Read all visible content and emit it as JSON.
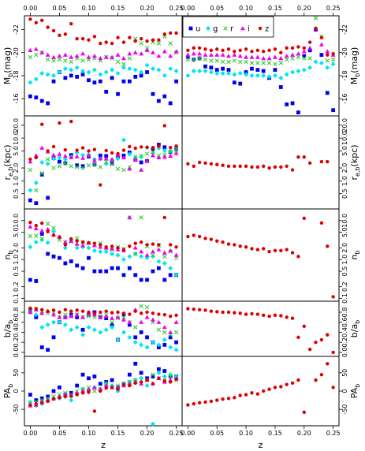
{
  "chart_data": {
    "type": "scatter",
    "layout": "5 rows x 2 columns, shared x axis",
    "xlabel": "z",
    "xlim": [
      -0.01,
      0.26
    ],
    "x_ticks": [
      "0.00",
      "0.05",
      "0.10",
      "0.15",
      "0.20",
      "0.25"
    ],
    "x": [
      0.0,
      0.01,
      0.02,
      0.03,
      0.04,
      0.05,
      0.06,
      0.07,
      0.08,
      0.09,
      0.1,
      0.11,
      0.12,
      0.13,
      0.14,
      0.15,
      0.16,
      0.17,
      0.18,
      0.19,
      0.2,
      0.21,
      0.22,
      0.23,
      0.24,
      0.25
    ],
    "legend": {
      "placement": "top-left of right column",
      "entries": [
        {
          "label": "u",
          "color": "#0000ee",
          "marker": "square"
        },
        {
          "label": "g",
          "color": "#00e5ee",
          "marker": "diamond"
        },
        {
          "label": "r",
          "color": "#33cc33",
          "marker": "cross"
        },
        {
          "label": "i",
          "color": "#ee00ee",
          "marker": "triangle"
        },
        {
          "label": "z",
          "color": "#dd0000",
          "marker": "circle"
        }
      ]
    },
    "rows": [
      {
        "ylabel_main": "M",
        "ylabel_sub": "b",
        "ylabel_unit": "(mag)",
        "ylim": [
          -14.5,
          -23.2
        ],
        "reversed": true,
        "y_ticks": [
          "-16",
          "-18",
          "-20",
          "-22"
        ],
        "left": {
          "u": [
            -16.2,
            -16.1,
            -15.8,
            -15.6,
            -17.5,
            -18.3,
            -17.8,
            -18.0,
            -17.9,
            -18.1,
            -17.6,
            -17.4,
            -17.5,
            -16.6,
            -17.8,
            -16.4,
            -17.5,
            -17.5,
            -17.9,
            -18.0,
            -18.3,
            -16.4,
            -15.8,
            -16.2,
            -15.6,
            -17.5
          ],
          "g": [
            -17.4,
            -17.7,
            -18.2,
            -18.1,
            -18.0,
            -18.3,
            -18.6,
            -18.5,
            -18.7,
            -18.4,
            -18.3,
            -18.5,
            -18.1,
            -18.3,
            -18.5,
            -18.2,
            -18.7,
            -18.6,
            -18.5,
            -18.3,
            -18.9,
            -18.6,
            -18.5,
            -18.0,
            -18.6,
            -18.4
          ],
          "r": [
            -19.6,
            -19.8,
            -20.0,
            -19.4,
            -19.3,
            -19.4,
            -19.3,
            -19.2,
            -19.5,
            -19.3,
            -19.4,
            -19.5,
            -19.3,
            -19.6,
            -19.5,
            -19.2,
            -19.0,
            -19.5,
            -21.2,
            -20.8,
            -20.4,
            -20.9,
            -20.8,
            -21.4,
            -20.8,
            -20.0
          ],
          "i": [
            -20.2,
            -20.3,
            -20.0,
            -19.8,
            -19.6,
            -19.7,
            -19.8,
            -19.6,
            -19.7,
            -19.9,
            -19.6,
            -19.7,
            -19.5,
            -19.6,
            -19.6,
            -19.8,
            -19.5,
            -19.9,
            -20.0,
            -19.9,
            -20.2,
            -20.0,
            -19.7,
            -20.1,
            -19.7,
            -20.1
          ],
          "z": [
            -22.9,
            -22.6,
            -22.8,
            -22.2,
            -21.9,
            -21.5,
            -21.6,
            -22.5,
            -21.2,
            -21.2,
            -21.1,
            -21.4,
            -20.8,
            -20.9,
            -20.8,
            -21.3,
            -20.9,
            -21.3,
            -21.0,
            -21.2,
            -21.0,
            -21.1,
            -21.1,
            -21.6,
            -21.7,
            -21.7
          ]
        },
        "right": {
          "u": [
            -19.6,
            -19.4,
            -19.5,
            -18.8,
            -18.7,
            -18.5,
            -18.6,
            -18.5,
            -17.4,
            -17.3,
            -18.3,
            -18.6,
            -18.5,
            -18.4,
            -17.8,
            -18.5,
            -17.0,
            -15.5,
            -15.6,
            -14.8,
            -19.7,
            -20.2,
            -22.0,
            -19.8,
            -16.5,
            -15.0
          ],
          "g": [
            -18.0,
            -18.4,
            -18.4,
            -18.4,
            -18.3,
            -18.2,
            -18.2,
            -18.2,
            -18.1,
            -18.2,
            -18.1,
            -18.0,
            -18.0,
            -18.0,
            -17.9,
            -18.0,
            -17.8,
            -18.1,
            -18.3,
            -18.4,
            -18.5,
            -18.7,
            -19.2,
            -19.1,
            -18.7,
            -19.0
          ],
          "r": [
            -19.4,
            -19.4,
            -19.5,
            -19.4,
            -19.3,
            -19.3,
            -19.2,
            -19.2,
            -19.3,
            -19.2,
            -19.2,
            -19.1,
            -19.1,
            -19.1,
            -19.1,
            -19.0,
            -19.1,
            -19.4,
            -19.5,
            -19.6,
            -19.5,
            -19.5,
            -23.0,
            -21.4,
            -19.3,
            -19.4
          ],
          "i": [
            -19.8,
            -19.9,
            -19.9,
            -19.8,
            -19.8,
            -19.8,
            -19.8,
            -19.7,
            -19.8,
            -19.7,
            -19.6,
            -19.6,
            -19.6,
            -19.5,
            -19.5,
            -19.6,
            -19.5,
            -19.7,
            -19.8,
            -19.9,
            -20.1,
            -20.4,
            -22.1,
            -20.7,
            -20.1,
            -19.8
          ],
          "z": [
            -20.2,
            -20.4,
            -20.4,
            -20.3,
            -20.2,
            -20.3,
            -20.2,
            -20.3,
            -20.1,
            -20.2,
            -20.3,
            -20.1,
            -20.2,
            -20.1,
            -20.2,
            -20.3,
            -20.0,
            -20.4,
            -20.4,
            -20.5,
            -20.4,
            -20.9,
            -22.1,
            -21.3,
            -19.8,
            -19.9
          ]
        }
      },
      {
        "ylabel_main": "r",
        "ylabel_sub": "e,b",
        "ylabel_unit": "(kpc)",
        "ylim": [
          0.22,
          33
        ],
        "log": true,
        "y_ticks": [
          "0.5",
          "1.0",
          "2.0",
          "5.0",
          "10.0",
          "20.0"
        ],
        "left": {
          "u": [
            0.35,
            0.3,
            1.4,
            0.4,
            3.4,
            2.8,
            2.6,
            4.0,
            2.3,
            2.2,
            3.7,
            2.4,
            3.9,
            3.8,
            2.6,
            3.6,
            3.9,
            4.6,
            3.1,
            2.7,
            2.9,
            5.4,
            7.0,
            6.1,
            4.7,
            5.6
          ],
          "g": [
            0.6,
            0.9,
            2.7,
            2.5,
            3.3,
            3.5,
            3.2,
            3.6,
            4.6,
            4.0,
            4.1,
            3.2,
            3.3,
            2.5,
            3.1,
            3.3,
            9.0,
            4.2,
            3.5,
            3.6,
            6.0,
            4.4,
            5.8,
            5.1,
            5.0,
            6.2
          ],
          "r": [
            1.8,
            0.6,
            1.5,
            3.2,
            2.0,
            2.2,
            2.6,
            2.2,
            2.1,
            2.0,
            2.3,
            2.4,
            2.1,
            2.8,
            2.4,
            1.9,
            1.8,
            2.1,
            3.6,
            3.9,
            4.3,
            4.8,
            3.9,
            4.1,
            4.8,
            5.1
          ],
          "i": [
            2.8,
            3.9,
            5.9,
            4.8,
            4.0,
            4.2,
            3.8,
            3.5,
            3.7,
            3.4,
            3.9,
            3.0,
            3.3,
            3.3,
            3.2,
            4.0,
            3.5,
            1.9,
            3.1,
            1.8,
            2.9,
            3.9,
            3.5,
            3.6,
            3.8,
            4.4
          ],
          "z": [
            3.2,
            3.5,
            21.0,
            5.0,
            6.3,
            22.5,
            5.3,
            24.5,
            5.2,
            5.9,
            5.0,
            5.4,
            0.8,
            5.1,
            4.5,
            4.3,
            5.2,
            6.3,
            5.8,
            6.2,
            6.1,
            6.0,
            6.5,
            19.5,
            6.0,
            6.5
          ]
        },
        "right": {
          "z": [
            2.5,
            2.2,
            2.7,
            2.6,
            2.5,
            2.4,
            2.3,
            2.2,
            2.2,
            2.2,
            2.2,
            2.1,
            2.1,
            2.2,
            2.0,
            2.1,
            2.1,
            2.2,
            1.8,
            3.6,
            3.6,
            2.6,
            null,
            2.8,
            2.8,
            null
          ]
        }
      },
      {
        "ylabel_main": "n",
        "ylabel_sub": "b",
        "ylabel_unit": "",
        "ylim": [
          0.085,
          20
        ],
        "log": true,
        "y_ticks": [
          "0.1",
          "0.2",
          "0.5",
          "1.0",
          "2.0",
          "5.0",
          "10.0"
        ],
        "left": {
          "u": [
            0.3,
            0.28,
            4.6,
            1.4,
            1.2,
            1.1,
            0.8,
            0.9,
            0.7,
            0.6,
            1.1,
            0.5,
            0.5,
            0.5,
            0.6,
            0.6,
            0.4,
            0.6,
            0.4,
            0.3,
            0.3,
            0.5,
            0.6,
            0.3,
            0.4,
            0.4
          ],
          "g": [
            2.1,
            2.8,
            3.2,
            2.7,
            5.3,
            3.6,
            2.0,
            3.0,
            2.0,
            2.1,
            2.0,
            1.7,
            1.6,
            1.6,
            1.4,
            1.3,
            1.0,
            1.2,
            1.4,
            1.2,
            1.1,
            1.2,
            0.9,
            0.8,
            0.6,
            0.4
          ],
          "r": [
            4.0,
            4.1,
            3.5,
            8.3,
            6.5,
            3.2,
            2.8,
            2.9,
            3.5,
            2.8,
            2.6,
            2.4,
            2.6,
            2.0,
            1.8,
            2.1,
            1.9,
            12.0,
            1.4,
            12.1,
            2.2,
            1.3,
            2.3,
            1.2,
            1.6,
            1.1
          ],
          "i": [
            7.0,
            6.3,
            5.5,
            6.0,
            4.4,
            3.8,
            2.8,
            3.0,
            2.5,
            2.3,
            2.7,
            2.3,
            2.1,
            2.0,
            1.9,
            1.8,
            1.7,
            12.0,
            2.0,
            1.6,
            1.3,
            1.6,
            1.8,
            1.5,
            1.7,
            1.3
          ],
          "z": [
            9.0,
            7.5,
            8.6,
            5.2,
            4.2,
            3.8,
            2.4,
            3.4,
            3.0,
            2.8,
            2.7,
            2.6,
            2.4,
            2.1,
            2.2,
            2.0,
            1.8,
            2.2,
            2.6,
            2.8,
            2.4,
            2.5,
            2.4,
            12.0,
            2.4,
            2.1
          ]
        },
        "right": {
          "z": [
            3.9,
            4.2,
            3.9,
            3.5,
            3.3,
            3.0,
            2.8,
            2.5,
            2.4,
            2.2,
            2.1,
            1.9,
            1.8,
            1.9,
            1.6,
            1.7,
            1.7,
            1.8,
            1.5,
            1.2,
            11.5,
            null,
            null,
            8.7,
            2.2,
            0.11
          ]
        }
      },
      {
        "ylabel_main": "b/a",
        "ylabel_sub": "b",
        "ylabel_unit": "",
        "ylim": [
          -0.08,
          1.02
        ],
        "y_ticks": [
          "0.0",
          "0.2",
          "0.4",
          "0.6",
          "0.8"
        ],
        "left": {
          "u": [
            0.85,
            0.7,
            0.1,
            0.05,
            0.3,
            0.6,
            0.7,
            0.75,
            0.7,
            0.45,
            0.75,
            0.8,
            0.7,
            0.68,
            0.55,
            0.25,
            0.75,
            0.55,
            0.3,
            0.4,
            0.3,
            0.2,
            0.1,
            0.15,
            0.3,
            0.2
          ],
          "g": [
            0.8,
            0.75,
            0.5,
            0.55,
            0.6,
            0.6,
            0.55,
            0.45,
            0.5,
            0.35,
            0.5,
            0.45,
            0.4,
            0.45,
            0.5,
            0.25,
            0.4,
            0.3,
            0.2,
            0.15,
            0.1,
            0.2,
            0.15,
            0.25,
            0.1,
            0.05
          ],
          "r": [
            0.82,
            0.85,
            0.82,
            0.78,
            0.8,
            0.7,
            0.75,
            0.72,
            0.75,
            0.7,
            0.72,
            0.7,
            0.72,
            0.75,
            0.6,
            0.68,
            0.7,
            0.6,
            0.5,
            0.92,
            0.9,
            0.6,
            0.45,
            0.4,
            0.35,
            0.4
          ],
          "i": [
            0.8,
            0.85,
            0.78,
            0.82,
            0.75,
            0.7,
            0.7,
            0.72,
            0.75,
            0.7,
            0.78,
            0.75,
            0.7,
            0.72,
            0.68,
            0.7,
            0.65,
            0.6,
            0.85,
            0.6,
            0.7,
            0.65,
            0.6,
            0.5,
            0.4,
            0.6
          ],
          "z": [
            0.88,
            0.87,
            0.85,
            0.82,
            0.84,
            0.8,
            0.85,
            0.82,
            0.84,
            0.82,
            0.8,
            0.78,
            0.8,
            0.82,
            0.79,
            0.8,
            0.78,
            0.76,
            0.82,
            0.78,
            0.8,
            0.78,
            0.76,
            0.75,
            0.72,
            0.74
          ]
        },
        "right": {
          "z": [
            0.87,
            0.86,
            0.85,
            0.84,
            0.82,
            0.81,
            0.8,
            0.8,
            0.79,
            0.78,
            0.76,
            0.77,
            0.76,
            0.74,
            0.72,
            0.74,
            0.73,
            0.7,
            0.68,
            0.3,
            0.52,
            0.06,
            0.2,
            0.25,
            0.35,
            0.0
          ]
        }
      },
      {
        "ylabel_main": "PA",
        "ylabel_sub": "b",
        "ylabel_unit": "",
        "ylim": [
          -95,
          95
        ],
        "y_ticks": [
          "-50",
          "0",
          "50"
        ],
        "left": {
          "u": [
            -10,
            -25,
            -20,
            -15,
            0,
            10,
            -10,
            -5,
            15,
            45,
            35,
            40,
            20,
            25,
            30,
            10,
            20,
            45,
            75,
            50,
            35,
            40,
            60,
            55,
            40,
            40
          ],
          "g": [
            -30,
            -40,
            -35,
            -25,
            -20,
            -20,
            -15,
            -25,
            -5,
            5,
            0,
            10,
            5,
            20,
            15,
            0,
            20,
            25,
            30,
            35,
            15,
            -90,
            50,
            40,
            45,
            40
          ],
          "r": [
            -35,
            -30,
            -25,
            -20,
            -15,
            -10,
            -5,
            -10,
            0,
            5,
            10,
            0,
            5,
            20,
            10,
            15,
            20,
            25,
            30,
            20,
            30,
            45,
            35,
            30,
            40,
            30
          ],
          "i": [
            -40,
            -38,
            -30,
            -25,
            -20,
            -15,
            -10,
            -12,
            -5,
            0,
            5,
            10,
            5,
            15,
            10,
            10,
            15,
            20,
            25,
            20,
            30,
            20,
            35,
            25,
            30,
            35
          ],
          "z": [
            -38,
            -35,
            -32,
            -28,
            -22,
            -18,
            -15,
            -14,
            -10,
            -5,
            -3,
            -55,
            0,
            8,
            10,
            5,
            18,
            15,
            22,
            25,
            30,
            20,
            35,
            28,
            25,
            32
          ]
        },
        "right": {
          "z": [
            -38,
            -35,
            -32,
            -30,
            -28,
            -25,
            -22,
            -20,
            -18,
            -12,
            -10,
            -5,
            -8,
            0,
            5,
            10,
            12,
            18,
            22,
            30,
            -58,
            null,
            30,
            45,
            75,
            10
          ]
        }
      }
    ]
  }
}
